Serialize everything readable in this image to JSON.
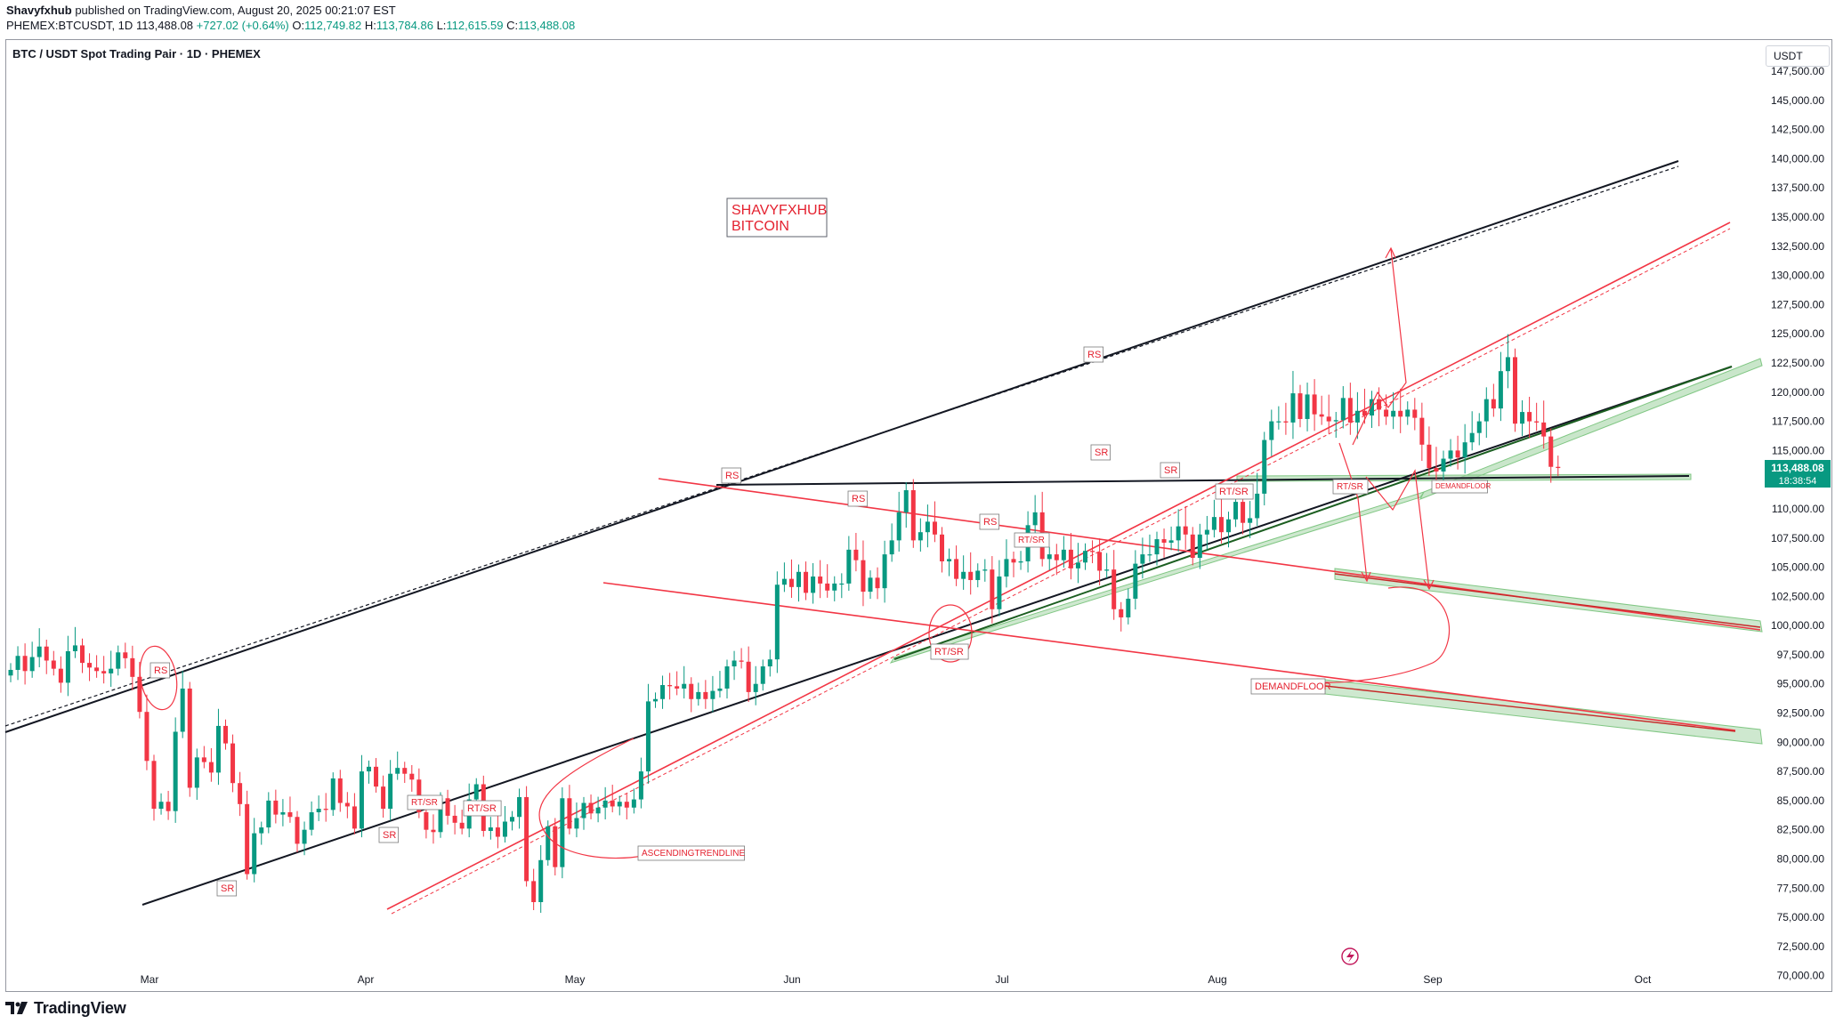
{
  "header": {
    "author": "Shavyfxhub",
    "published_text": "published on TradingView.com, August 20, 2025 00:21:07 EST",
    "symbol": "PHEMEX:BTCUSDT, 1D",
    "last": "113,488.08",
    "change": "+727.02 (+0.64%)",
    "o_label": "O:",
    "open": "112,749.82",
    "h_label": "H:",
    "high": "113,784.86",
    "l_label": "L:",
    "low": "112,615.59",
    "c_label": "C:",
    "close": "113,488.08"
  },
  "pane": {
    "title": "BTC / USDT Spot Trading Pair · 1D · PHEMEX",
    "currency": "USDT",
    "price_tag": "113,488.08",
    "countdown": "18:38:54"
  },
  "brand": {
    "name": "TradingView",
    "logo": "tradingview-logo-icon"
  },
  "colors": {
    "up": "#089981",
    "down": "#f23645",
    "red_line": "#f23645",
    "green_zone": "#a5d6a7",
    "label_text": "#e4212f",
    "label_border": "#7a7a7a"
  },
  "chart_data": {
    "type": "candlestick",
    "title": "BTC / USDT Spot Trading Pair · 1D · PHEMEX",
    "y_unit": "USDT",
    "ylim": [
      68600,
      150250
    ],
    "y_ticks": [
      "147,500.00",
      "145,000.00",
      "142,500.00",
      "140,000.00",
      "137,500.00",
      "135,000.00",
      "132,500.00",
      "130,000.00",
      "127,500.00",
      "125,000.00",
      "122,500.00",
      "120,000.00",
      "117,500.00",
      "115,000.00",
      "112,500.00",
      "110,000.00",
      "107,500.00",
      "105,000.00",
      "102,500.00",
      "100,000.00",
      "97,500.00",
      "95,000.00",
      "92,500.00",
      "90,000.00",
      "87,500.00",
      "85,000.00",
      "82,500.00",
      "80,000.00",
      "77,500.00",
      "75,000.00",
      "72,500.00",
      "70,000.00"
    ],
    "x_ticks": [
      "Mar",
      "Apr",
      "May",
      "Jun",
      "Jul",
      "Aug",
      "Sep",
      "Oct"
    ],
    "series": [
      {
        "name": "BTCUSDT daily closes (approx.)",
        "closes": [
          96200,
          97400,
          96100,
          97300,
          98200,
          97000,
          96300,
          95100,
          97800,
          98300,
          96800,
          96400,
          96100,
          95900,
          96300,
          97700,
          97200,
          95600,
          92600,
          88400,
          84300,
          84900,
          84100,
          90900,
          94600,
          86100,
          88700,
          88300,
          87400,
          91400,
          89900,
          86500,
          84700,
          78700,
          82200,
          82700,
          85000,
          83800,
          84000,
          83600,
          81300,
          82500,
          84000,
          84300,
          84200,
          86900,
          84800,
          84500,
          82600,
          87500,
          87900,
          86200,
          84300,
          87300,
          87800,
          87300,
          86800,
          84000,
          82500,
          82300,
          85200,
          83700,
          83100,
          82600,
          85100,
          86400,
          82400,
          82700,
          81900,
          83200,
          83600,
          85300,
          78100,
          76300,
          79900,
          82800,
          79300,
          85200,
          82600,
          83500,
          84800,
          83900,
          84400,
          85000,
          84500,
          84900,
          84400,
          85100,
          87500,
          93500,
          93700,
          94900,
          94800,
          94600,
          95000,
          93700,
          94300,
          93700,
          94400,
          94600,
          96500,
          97000,
          96900,
          94300,
          95000,
          96500,
          97100,
          103500,
          104000,
          103300,
          104600,
          102800,
          104200,
          103600,
          103000,
          103600,
          103600,
          106500,
          105600,
          102900,
          104100,
          103200,
          106100,
          107300,
          109700,
          111600,
          107300,
          108000,
          108900,
          107800,
          105500,
          105700,
          104000,
          104600,
          103900,
          104700,
          104800,
          101400,
          104200,
          105700,
          105400,
          105500,
          108600,
          109700,
          105700,
          106100,
          105600,
          106500,
          104900,
          105400,
          106400,
          106300,
          104700,
          104800,
          101400,
          100700,
          102300,
          105300,
          106100,
          106100,
          107400,
          107100,
          107300,
          108500,
          107800,
          105800,
          107800,
          108200,
          109300,
          108000,
          109100,
          110600,
          108800,
          109200,
          111300,
          115900,
          117500,
          117500,
          117400,
          119900,
          117700,
          119800,
          118100,
          117900,
          117500,
          117600,
          119500,
          117400,
          118400,
          118000,
          119400,
          118500,
          117900,
          118400,
          117900,
          118500,
          117800,
          115500,
          113500,
          113200,
          114300,
          115000,
          114400,
          115700,
          116500,
          117500,
          119400,
          118600,
          121800,
          123000,
          117300,
          118300,
          117500,
          117400,
          116200,
          113600,
          113500
        ]
      }
    ]
  },
  "annotations": {
    "watermark_line1": "SHAVYFXHUB",
    "watermark_line2": "BITCOIN",
    "ascending": "ASCENDINGTRENDLINE",
    "demand1": "DEMANDFLOOR",
    "demand2": "DEMANDFLOOR",
    "rs": "RS",
    "sr": "SR",
    "rtsr": "RT/SR"
  }
}
